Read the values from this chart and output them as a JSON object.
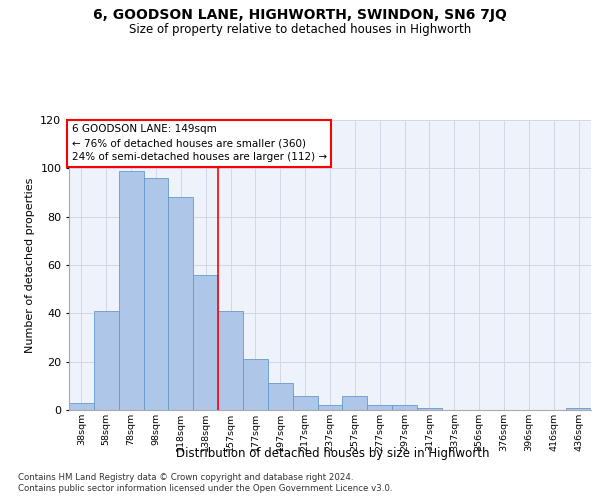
{
  "title": "6, GOODSON LANE, HIGHWORTH, SWINDON, SN6 7JQ",
  "subtitle": "Size of property relative to detached houses in Highworth",
  "xlabel": "Distribution of detached houses by size in Highworth",
  "ylabel": "Number of detached properties",
  "categories": [
    "38sqm",
    "58sqm",
    "78sqm",
    "98sqm",
    "118sqm",
    "138sqm",
    "157sqm",
    "177sqm",
    "197sqm",
    "217sqm",
    "237sqm",
    "257sqm",
    "277sqm",
    "297sqm",
    "317sqm",
    "337sqm",
    "356sqm",
    "376sqm",
    "396sqm",
    "416sqm",
    "436sqm"
  ],
  "values": [
    3,
    41,
    99,
    96,
    88,
    56,
    41,
    21,
    11,
    6,
    2,
    6,
    2,
    2,
    1,
    0,
    0,
    0,
    0,
    0,
    1
  ],
  "bar_color": "#aec6e8",
  "bar_edge_color": "#6699cc",
  "grid_color": "#d0d8e8",
  "background_color": "#eef2fa",
  "vline_x": 5.5,
  "vline_color": "red",
  "annotation_text": "6 GOODSON LANE: 149sqm\n← 76% of detached houses are smaller (360)\n24% of semi-detached houses are larger (112) →",
  "annotation_box_color": "white",
  "annotation_box_edge": "red",
  "ylim": [
    0,
    120
  ],
  "yticks": [
    0,
    20,
    40,
    60,
    80,
    100,
    120
  ],
  "footer1": "Contains HM Land Registry data © Crown copyright and database right 2024.",
  "footer2": "Contains public sector information licensed under the Open Government Licence v3.0."
}
